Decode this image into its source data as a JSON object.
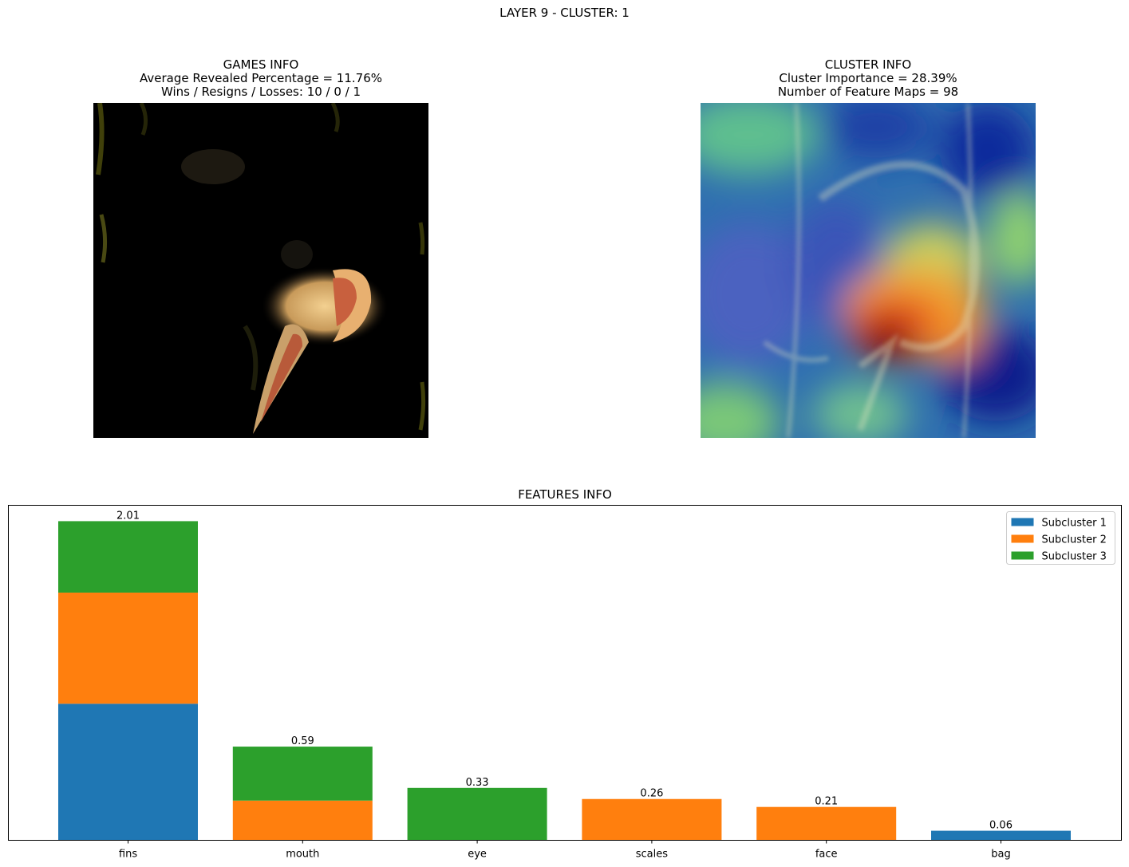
{
  "suptitle": "LAYER 9 - CLUSTER: 1",
  "games_info": {
    "title": "GAMES INFO",
    "line1": "Average Revealed Percentage = 11.76%",
    "line2": "Wins / Resigns / Losses: 10 / 0 / 1"
  },
  "cluster_info": {
    "title": "CLUSTER INFO",
    "line1": "Cluster Importance = 28.39%",
    "line2": "Number of Feature Maps = 98"
  },
  "colors": {
    "subcluster_1": "#1f77b4",
    "subcluster_2": "#ff7f0e",
    "subcluster_3": "#2ca02c"
  },
  "chart_data": {
    "type": "bar",
    "stacked": true,
    "title": "FEATURES INFO",
    "xlabel": "",
    "ylabel": "",
    "categories": [
      "fins",
      "mouth",
      "eye",
      "scales",
      "face",
      "bag"
    ],
    "series": [
      {
        "name": "Subcluster 1",
        "values": [
          0.86,
          0,
          0,
          0,
          0,
          0.06
        ]
      },
      {
        "name": "Subcluster 2",
        "values": [
          0.7,
          0.25,
          0,
          0.26,
          0.21,
          0
        ]
      },
      {
        "name": "Subcluster 3",
        "values": [
          0.45,
          0.34,
          0.33,
          0,
          0,
          0
        ]
      }
    ],
    "totals": [
      2.01,
      0.59,
      0.33,
      0.26,
      0.21,
      0.06
    ],
    "total_labels": [
      "2.01",
      "0.59",
      "0.33",
      "0.26",
      "0.21",
      "0.06"
    ],
    "ylim": [
      0,
      2.11
    ],
    "y_ticks_visible": false,
    "grid": false,
    "legend_placement": "top-right"
  }
}
